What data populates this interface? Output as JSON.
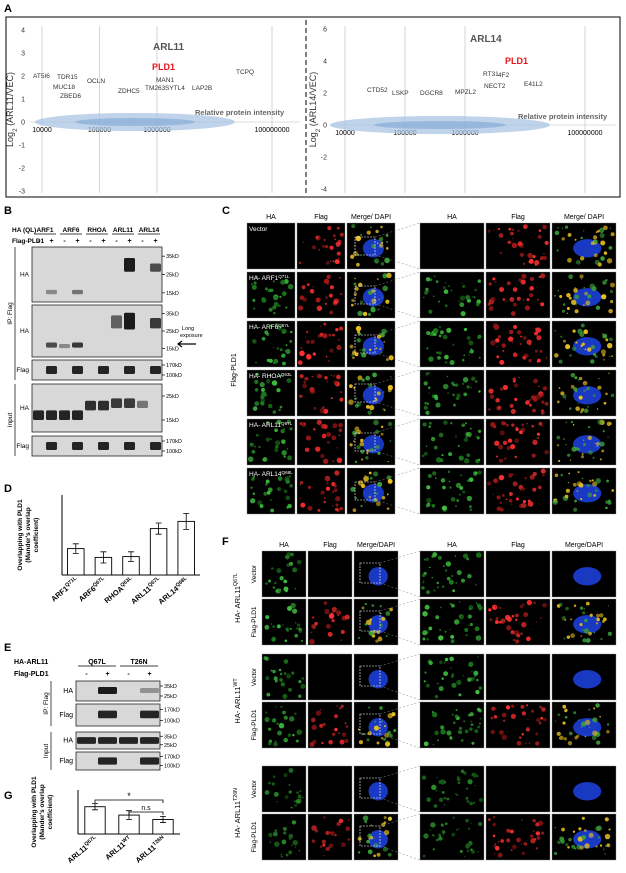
{
  "panel_labels": [
    "A",
    "B",
    "C",
    "D",
    "E",
    "F",
    "G"
  ],
  "A": {
    "left": {
      "ylabel": {
        "base": "Log",
        "sub": "2",
        "rest": " (ARL11/VEC)"
      },
      "yticks": [
        4,
        3,
        2,
        1,
        0,
        -1,
        -2,
        -3
      ],
      "xticks": [
        10000,
        100000,
        1000000,
        100000000
      ],
      "xlabel": "Relative protein intensity",
      "hits": [
        "ARL11",
        "PLD1",
        "AT5I6",
        "TDR15",
        "OCLN",
        "MUC18",
        "ZBED6",
        "ZDHC5",
        "MAN1",
        "TM263",
        "SYTL4",
        "LAP2B",
        "TCPQ"
      ]
    },
    "right": {
      "ylabel": {
        "base": "Log",
        "sub": "2",
        "rest": " (ARL14/VEC)"
      },
      "yticks": [
        6,
        4,
        2,
        0,
        -2,
        -4
      ],
      "xticks": [
        10000,
        100000,
        1000000,
        100000000
      ],
      "xlabel": "Relative protein intensity",
      "hits": [
        "ARL14",
        "PLD1",
        "RT31",
        "4F2",
        "NECT2",
        "E41L2",
        "CTD52",
        "LSKP",
        "DGCR8",
        "MPZL2"
      ]
    }
  },
  "B": {
    "header": "HA (QL)",
    "proteins": [
      "ARF1",
      "ARF6",
      "RHOA",
      "ARL11",
      "ARL14"
    ],
    "flag_label": "Flag-PLD1",
    "signs": [
      "-",
      "+",
      "-",
      "+",
      "-",
      "+",
      "-",
      "+",
      "-",
      "+"
    ],
    "ip_label": "IP: Flag",
    "input_label": "Input",
    "blot_labels": [
      "HA",
      "HA",
      "Flag",
      "HA",
      "Flag"
    ],
    "markers": [
      [
        "35kD",
        "25kD",
        "15kD"
      ],
      [
        "35kD",
        "25kD",
        "15kD"
      ],
      [
        "170kD",
        "100kD"
      ],
      [
        "25kD",
        "15kD"
      ],
      [
        "170kD",
        "100kD"
      ]
    ],
    "arrow_label": [
      "Long",
      "exposure"
    ]
  },
  "C": {
    "columns": [
      "HA",
      "Flag",
      "Merge/ DAPI",
      "HA",
      "Flag",
      "Merge/ DAPI"
    ],
    "rows": [
      {
        "name": "Vector"
      },
      {
        "name": "HA- ARF1",
        "sup": "Q71L"
      },
      {
        "name": "HA- ARF6",
        "sup": "Q67L"
      },
      {
        "name": "HA- RHOA",
        "sup": "Q63L"
      },
      {
        "name": "HA- ARL11",
        "sup": "Q67L"
      },
      {
        "name": "HA- ARL14",
        "sup": "Q68L"
      }
    ],
    "side_label": "Flag-PLD1"
  },
  "D": {
    "ylabel": [
      "Overlapping with PLD1",
      "(Mander's overlap",
      "coefficient)"
    ],
    "categories": [
      {
        "name": "ARF1",
        "sup": "Q71L"
      },
      {
        "name": "ARF6",
        "sup": "Q67L"
      },
      {
        "name": "RHOA",
        "sup": "Q63L"
      },
      {
        "name": "ARL11",
        "sup": "Q67L"
      },
      {
        "name": "ARL14",
        "sup": "Q68L"
      }
    ],
    "values": [
      0.33,
      0.22,
      0.23,
      0.58,
      0.67
    ],
    "errors": [
      0.06,
      0.07,
      0.06,
      0.07,
      0.1
    ],
    "ylim": [
      0,
      1
    ]
  },
  "E": {
    "construct": "HA-ARL11",
    "mutants": [
      "Q67L",
      "T26N"
    ],
    "flag_label": "Flag-PLD1",
    "signs": [
      "-",
      "+",
      "-",
      "+"
    ],
    "ip_label": "IP: Flag",
    "input_label": "Input",
    "blot_labels": [
      "HA",
      "Flag",
      "HA",
      "Flag"
    ],
    "markers": [
      [
        "35kD",
        "25kD"
      ],
      [
        "170kD",
        "100kD"
      ],
      [
        "35kD",
        "25kD"
      ],
      [
        "170kD",
        "100kD"
      ]
    ]
  },
  "F": {
    "columns": [
      "HA",
      "Flag",
      "Merge/DAPI",
      "HA",
      "Flag",
      "Merge/DAPI"
    ],
    "groups": [
      {
        "name": "HA- ARL11",
        "sup": "Q67L",
        "rows": [
          "Vector",
          "Flag-PLD1"
        ]
      },
      {
        "name": "HA- ARL11",
        "sup": "WT",
        "rows": [
          "Vector",
          "Flag-PLD1"
        ]
      },
      {
        "name": "HA- ARL11",
        "sup": "T26N",
        "rows": [
          "Vector",
          "Flag-PLD1"
        ]
      }
    ]
  },
  "G": {
    "ylabel": [
      "Overlapping with PLD1",
      "(Mander's overlap",
      "coefficient)"
    ],
    "categories": [
      {
        "name": "ARL11",
        "sup": "Q67L"
      },
      {
        "name": "ARL11",
        "sup": "WT"
      },
      {
        "name": "ARL11",
        "sup": "T26N"
      }
    ],
    "values": [
      0.62,
      0.43,
      0.33
    ],
    "errors": [
      0.07,
      0.1,
      0.07
    ],
    "ylim": [
      0,
      1
    ],
    "significance": [
      "*",
      "n.s"
    ]
  }
}
